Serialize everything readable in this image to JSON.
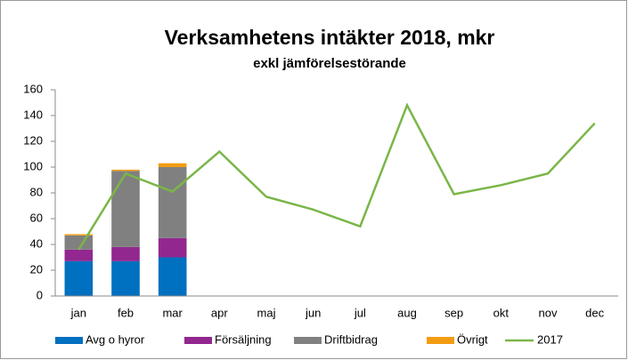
{
  "chart_data": {
    "type": "bar",
    "stacked": true,
    "title": "Verksamhetens  intäkter 2018, mkr",
    "subtitle": "exkl jämförelsestörande",
    "categories": [
      "jan",
      "feb",
      "mar",
      "apr",
      "maj",
      "jun",
      "jul",
      "aug",
      "sep",
      "okt",
      "nov",
      "dec"
    ],
    "series": [
      {
        "name": "Avg o hyror",
        "color": "#0070c0",
        "values": [
          27,
          27,
          30,
          null,
          null,
          null,
          null,
          null,
          null,
          null,
          null,
          null
        ]
      },
      {
        "name": "Försäljning",
        "color": "#92278f",
        "values": [
          9,
          11,
          15,
          null,
          null,
          null,
          null,
          null,
          null,
          null,
          null,
          null
        ]
      },
      {
        "name": "Driftbidrag",
        "color": "#808080",
        "values": [
          11,
          59,
          55,
          null,
          null,
          null,
          null,
          null,
          null,
          null,
          null,
          null
        ]
      },
      {
        "name": "Övrigt",
        "color": "#f39c12",
        "values": [
          1,
          1,
          3,
          null,
          null,
          null,
          null,
          null,
          null,
          null,
          null,
          null
        ]
      },
      {
        "name": "2017",
        "color": "#7ab648",
        "type": "line",
        "values": [
          36,
          95,
          81,
          112,
          77,
          67,
          54,
          148,
          79,
          86,
          95,
          134
        ]
      }
    ],
    "ylim": [
      0,
      160
    ],
    "yticks": [
      0,
      20,
      40,
      60,
      80,
      100,
      120,
      140,
      160
    ],
    "grid": false,
    "legend": "bottom"
  }
}
